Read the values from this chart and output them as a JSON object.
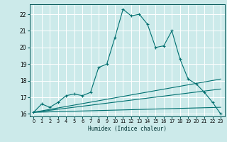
{
  "xlabel": "Humidex (Indice chaleur)",
  "ylabel": "",
  "bg_color": "#cceaea",
  "grid_color": "#ffffff",
  "line_color": "#007070",
  "xlim": [
    -0.5,
    23.5
  ],
  "ylim": [
    15.85,
    22.6
  ],
  "yticks": [
    16,
    17,
    18,
    19,
    20,
    21,
    22
  ],
  "xticks": [
    0,
    1,
    2,
    3,
    4,
    5,
    6,
    7,
    8,
    9,
    10,
    11,
    12,
    13,
    14,
    15,
    16,
    17,
    18,
    19,
    20,
    21,
    22,
    23
  ],
  "series": {
    "main": {
      "x": [
        0,
        1,
        2,
        3,
        4,
        5,
        6,
        7,
        8,
        9,
        10,
        11,
        12,
        13,
        14,
        15,
        16,
        17,
        18,
        19,
        20,
        21,
        22,
        23
      ],
      "y": [
        16.1,
        16.6,
        16.4,
        16.7,
        17.1,
        17.2,
        17.1,
        17.3,
        18.8,
        19.0,
        20.6,
        22.3,
        21.9,
        22.0,
        21.4,
        20.0,
        20.1,
        21.0,
        19.3,
        18.1,
        17.8,
        17.3,
        16.7,
        16.0
      ]
    },
    "line1": {
      "x": [
        0,
        23
      ],
      "y": [
        16.1,
        18.1
      ]
    },
    "line2": {
      "x": [
        0,
        23
      ],
      "y": [
        16.1,
        17.5
      ]
    },
    "line3": {
      "x": [
        0,
        23
      ],
      "y": [
        16.1,
        16.4
      ]
    }
  }
}
